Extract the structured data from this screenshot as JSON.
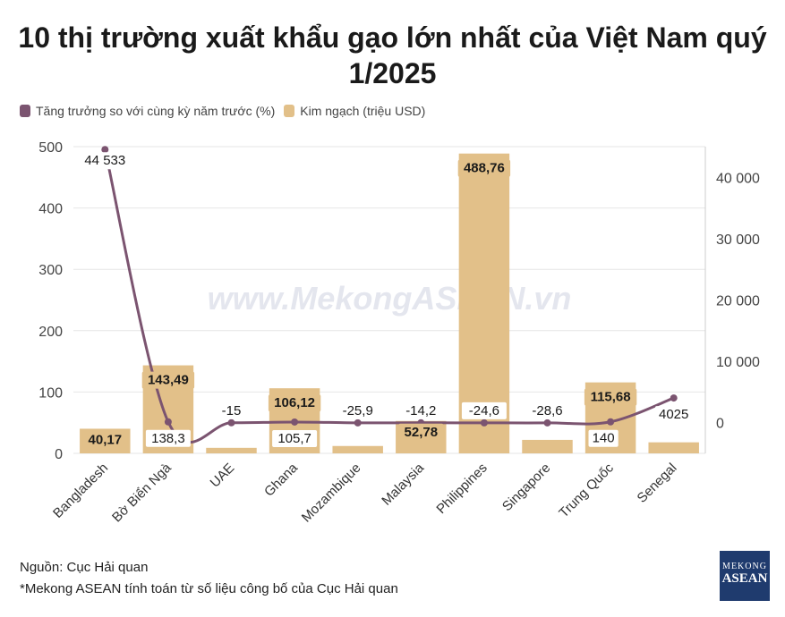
{
  "title_line1": "10 thị trường xuất khẩu gạo lớn nhất của Việt Nam quý",
  "title_line2": "1/2025",
  "legend": {
    "line_label": "Tăng trưởng so với cùng kỳ năm trước (%)",
    "bar_label": "Kim ngạch (triệu USD)"
  },
  "watermark": "www.MekongASEAN.vn",
  "source": "Nguồn: Cục Hải quan",
  "note": "*Mekong ASEAN tính toán từ số liệu công bố của Cục Hải quan",
  "logo": {
    "line1": "MEKONG",
    "line2": "ASEAN"
  },
  "colors": {
    "bar": "#e2c089",
    "line": "#7b5470",
    "grid": "#e6e6e6"
  },
  "chart_data": {
    "type": "bar",
    "categories": [
      "Bangladesh",
      "Bờ Biển Ngà",
      "UAE",
      "Ghana",
      "Mozambique",
      "Malaysia",
      "Philippines",
      "Singapore",
      "Trung Quốc",
      "Senegal"
    ],
    "series": [
      {
        "name": "Kim ngạch (triệu USD)",
        "type": "bar",
        "axis": "left",
        "values": [
          40.17,
          143.49,
          9,
          106.12,
          12,
          52.78,
          488.76,
          22,
          115.68,
          18
        ],
        "labels": [
          "40,17",
          "143,49",
          "",
          "106,12",
          "",
          "52,78",
          "488,76",
          "",
          "115,68",
          ""
        ]
      },
      {
        "name": "Tăng trưởng so với cùng kỳ năm trước (%)",
        "type": "line",
        "axis": "right",
        "values": [
          44533,
          138.3,
          -15,
          105.7,
          -25.9,
          -14.2,
          -24.6,
          -28.6,
          140,
          4025
        ],
        "labels": [
          "44 533",
          "138,3",
          "-15",
          "105,7",
          "-25,9",
          "-14,2",
          "-24,6",
          "-28,6",
          "140",
          "4025"
        ]
      }
    ],
    "y_left": {
      "range": [
        0,
        500
      ],
      "ticks": [
        0,
        100,
        200,
        300,
        400,
        500
      ],
      "tick_labels": [
        "0",
        "100",
        "200",
        "300",
        "400",
        "500"
      ]
    },
    "y_right": {
      "range": [
        -5000,
        45000
      ],
      "ticks": [
        0,
        10000,
        20000,
        30000,
        40000
      ],
      "tick_labels": [
        "0",
        "10 000",
        "20 000",
        "30 000",
        "40 000"
      ]
    },
    "grid": true,
    "legend_position": "top-left"
  }
}
